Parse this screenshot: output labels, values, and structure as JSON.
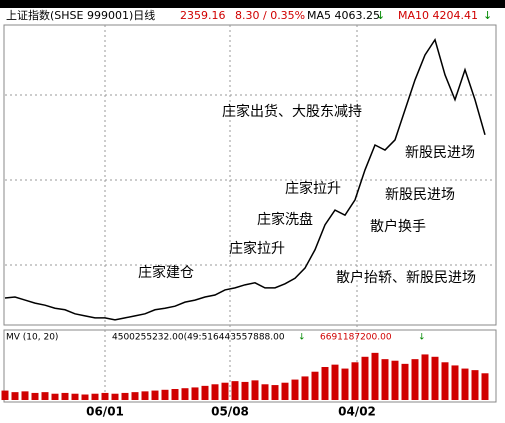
{
  "chart_data": {
    "type": "line",
    "title": "上证指数(SHSE 999001)日线",
    "header_values": [
      "2359.16",
      "8.30 / 0.35%",
      "MA5 4063.25",
      "↓",
      "MA10 4204.41",
      "↓"
    ],
    "volume_title": "MV (10, 20)",
    "volume_header": [
      "4500255232.00(49:516443557888.00",
      "↓",
      "6691187200.00",
      "↓"
    ],
    "annotations": [
      "庄家建仓",
      "庄家拉升",
      "庄家洗盘",
      "庄家拉升",
      "庄家出货、大股东减持",
      "新股民进场",
      "新股民进场",
      "散户换手",
      "散户抬轿、新股民进场"
    ],
    "x": [
      0,
      1,
      2,
      3,
      4,
      5,
      6,
      7,
      8,
      9,
      10,
      11,
      12,
      13,
      14,
      15,
      16,
      17,
      18,
      19,
      20,
      21,
      22,
      23,
      24,
      25,
      26,
      27,
      28,
      29,
      30,
      31,
      32,
      33,
      34,
      35,
      36,
      37,
      38,
      39,
      40,
      41,
      42,
      43,
      44,
      45,
      46,
      47,
      48
    ],
    "xlim": [
      0,
      49
    ],
    "xticks": [
      {
        "value": 10,
        "label": "06/01"
      },
      {
        "value": 22.5,
        "label": "05/08"
      },
      {
        "value": 35.2,
        "label": "04/02"
      }
    ],
    "ylim": [
      700,
      6600
    ],
    "series": [
      {
        "name": "上证指数",
        "color": "#000000",
        "values": [
          1231,
          1250,
          1190,
          1130,
          1090,
          1030,
          1000,
          920,
          880,
          840,
          840,
          800,
          840,
          880,
          920,
          1000,
          1030,
          1070,
          1150,
          1190,
          1250,
          1290,
          1390,
          1430,
          1490,
          1530,
          1430,
          1430,
          1510,
          1620,
          1820,
          2180,
          2670,
          2960,
          2860,
          3160,
          3750,
          4240,
          4140,
          4340,
          4930,
          5520,
          6010,
          6310,
          5620,
          5130,
          5720,
          5130,
          4440
        ]
      }
    ],
    "volume": {
      "color": "#d00000",
      "ylim": [
        0,
        70
      ],
      "values": [
        12,
        10,
        11,
        9,
        10,
        8,
        9,
        8,
        7,
        8,
        9,
        8,
        9,
        10,
        11,
        12,
        13,
        14,
        15,
        16,
        18,
        20,
        22,
        24,
        23,
        25,
        20,
        19,
        22,
        26,
        30,
        36,
        42,
        45,
        40,
        48,
        55,
        60,
        52,
        50,
        46,
        52,
        58,
        55,
        48,
        44,
        40,
        38,
        34
      ]
    }
  }
}
